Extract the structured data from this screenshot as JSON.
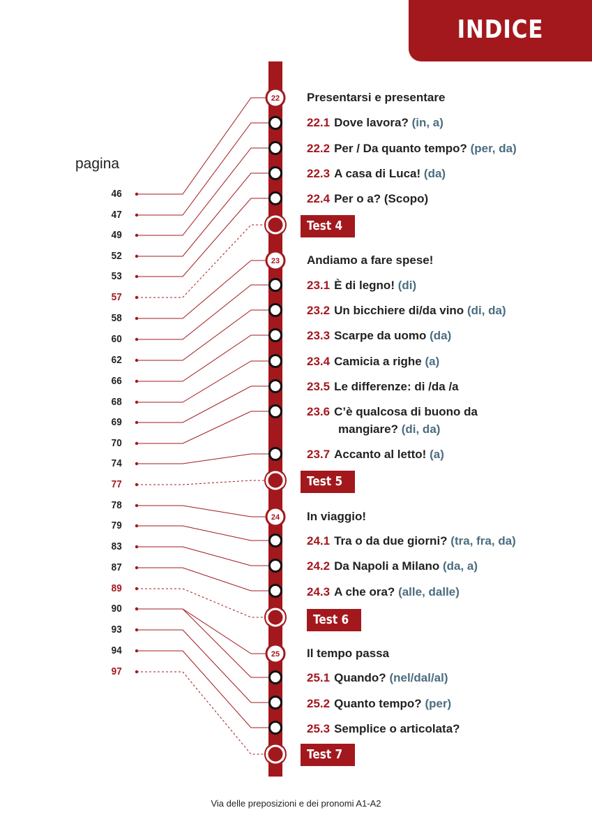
{
  "header": {
    "title": "INDICE"
  },
  "pages_label": "pagina",
  "pages": [
    {
      "n": "46",
      "red": false
    },
    {
      "n": "47",
      "red": false
    },
    {
      "n": "49",
      "red": false
    },
    {
      "n": "52",
      "red": false
    },
    {
      "n": "53",
      "red": false
    },
    {
      "n": "57",
      "red": true
    },
    {
      "n": "58",
      "red": false
    },
    {
      "n": "60",
      "red": false
    },
    {
      "n": "62",
      "red": false
    },
    {
      "n": "66",
      "red": false
    },
    {
      "n": "68",
      "red": false
    },
    {
      "n": "69",
      "red": false
    },
    {
      "n": "70",
      "red": false
    },
    {
      "n": "74",
      "red": false
    },
    {
      "n": "77",
      "red": true
    },
    {
      "n": "78",
      "red": false
    },
    {
      "n": "79",
      "red": false
    },
    {
      "n": "83",
      "red": false
    },
    {
      "n": "87",
      "red": false
    },
    {
      "n": "89",
      "red": true
    },
    {
      "n": "90",
      "red": false
    },
    {
      "n": "93",
      "red": false
    },
    {
      "n": "94",
      "red": false
    },
    {
      "n": "97",
      "red": true
    }
  ],
  "chapters": {
    "c22": {
      "num": "22",
      "title": "Presentarsi e presentare"
    },
    "c23": {
      "num": "23",
      "title": "Andiamo a fare spese!"
    },
    "c24": {
      "num": "24",
      "title": "In viaggio!"
    },
    "c25": {
      "num": "25",
      "title": "Il tempo passa"
    }
  },
  "lessons": {
    "l22_1": {
      "num": "22.1",
      "title": "Dove lavora?",
      "hint": "(in, a)"
    },
    "l22_2": {
      "num": "22.2",
      "title": "Per / Da quanto tempo?",
      "hint": "(per, da)"
    },
    "l22_3": {
      "num": "22.3",
      "title": "A casa di Luca!",
      "hint": "(da)"
    },
    "l22_4": {
      "num": "22.4",
      "title": "Per o a? (Scopo)",
      "hint": ""
    },
    "l23_1": {
      "num": "23.1",
      "title": "È di legno!",
      "hint": "(di)"
    },
    "l23_2": {
      "num": "23.2",
      "title": "Un bicchiere di/da vino",
      "hint": "(di, da)"
    },
    "l23_3": {
      "num": "23.3",
      "title": "Scarpe da uomo",
      "hint": "(da)"
    },
    "l23_4": {
      "num": "23.4",
      "title": "Camicia a righe",
      "hint": "(a)"
    },
    "l23_5": {
      "num": "23.5",
      "title": "Le differenze: di /da /a",
      "hint": ""
    },
    "l23_6": {
      "num": "23.6",
      "title": "C’è qualcosa di buono da",
      "title2": "mangiare?",
      "hint": "(di, da)"
    },
    "l23_7": {
      "num": "23.7",
      "title": "Accanto al letto!",
      "hint": "(a)"
    },
    "l24_1": {
      "num": "24.1",
      "title": "Tra o da due giorni?",
      "hint": "(tra, fra, da)"
    },
    "l24_2": {
      "num": "24.2",
      "title": "Da Napoli a Milano",
      "hint": "(da, a)"
    },
    "l24_3": {
      "num": "24.3",
      "title": "A che ora?",
      "hint": "(alle, dalle)"
    },
    "l25_1": {
      "num": "25.1",
      "title": "Quando?",
      "hint": "(nel/dal/al)"
    },
    "l25_2": {
      "num": "25.2",
      "title": "Quanto tempo?",
      "hint": "(per)"
    },
    "l25_3": {
      "num": "25.3",
      "title": "Semplice o articolata?",
      "hint": ""
    }
  },
  "tests": {
    "t4": "Test 4",
    "t5": "Test 5",
    "t6": "Test 6",
    "t7": "Test 7"
  },
  "colors": {
    "brand_red": "#a3181d",
    "hint_blue": "#4b6d80"
  },
  "footer": "Via delle preposizioni e dei pronomi A1-A2"
}
